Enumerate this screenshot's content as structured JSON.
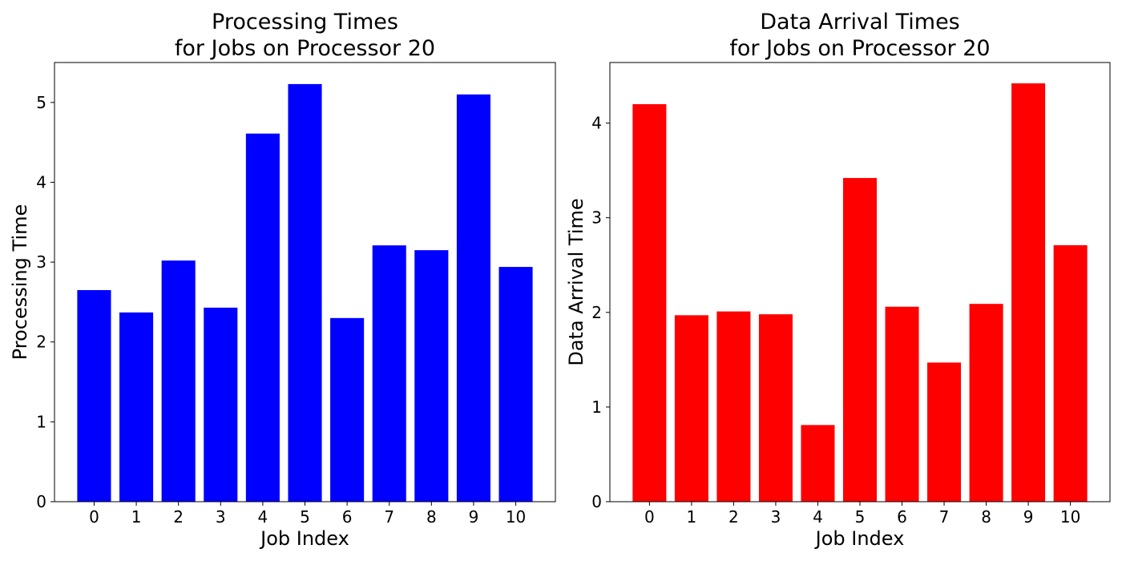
{
  "chart_data": [
    {
      "type": "bar",
      "title_lines": [
        "Processing Times",
        "for Jobs on Processor 20"
      ],
      "xlabel": "Job Index",
      "ylabel": "Processing Time",
      "categories": [
        "0",
        "1",
        "2",
        "3",
        "4",
        "5",
        "6",
        "7",
        "8",
        "9",
        "10"
      ],
      "values": [
        2.65,
        2.37,
        3.02,
        2.43,
        4.61,
        5.23,
        2.3,
        3.21,
        3.15,
        5.1,
        2.94
      ],
      "yticks": [
        0,
        1,
        2,
        3,
        4,
        5
      ],
      "ylim": [
        0,
        5.5
      ],
      "color": "#0000ff"
    },
    {
      "type": "bar",
      "title_lines": [
        "Data Arrival Times",
        "for Jobs on Processor 20"
      ],
      "xlabel": "Job Index",
      "ylabel": "Data Arrival Time",
      "categories": [
        "0",
        "1",
        "2",
        "3",
        "4",
        "5",
        "6",
        "7",
        "8",
        "9",
        "10"
      ],
      "values": [
        4.2,
        1.97,
        2.01,
        1.98,
        0.81,
        3.42,
        2.06,
        1.47,
        2.09,
        4.42,
        2.71
      ],
      "yticks": [
        0,
        1,
        2,
        3,
        4
      ],
      "ylim": [
        0,
        4.64
      ],
      "color": "#ff0000"
    }
  ]
}
